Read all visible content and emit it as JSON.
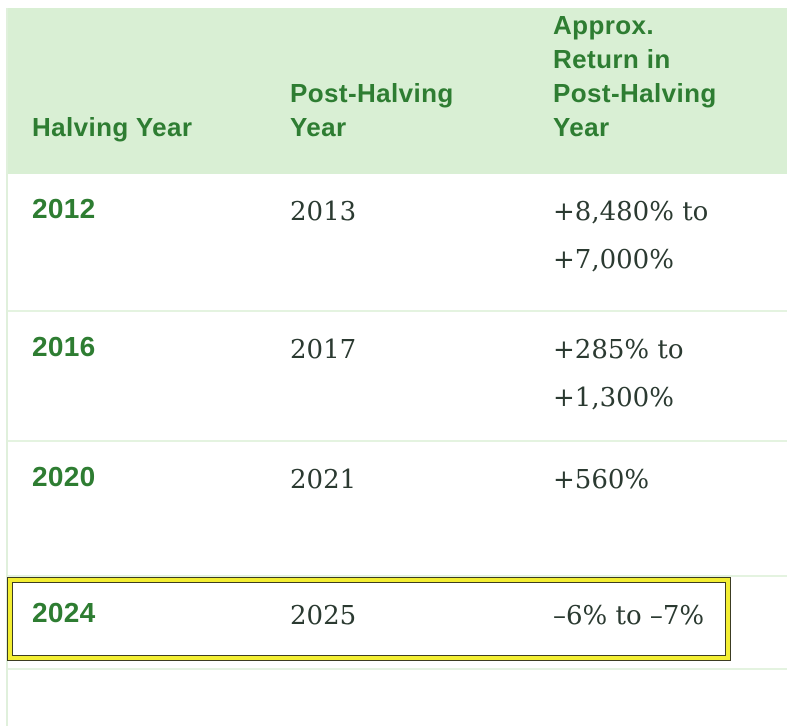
{
  "table": {
    "columns": [
      {
        "label": "Halving Year"
      },
      {
        "label": "Post-Halving Year"
      },
      {
        "label": "Approx. Return in Post-Halving Year"
      }
    ],
    "rows": [
      {
        "halving_year": "2012",
        "post_halving_year": "2013",
        "approx_return": "+8,480% to +7,000%",
        "highlighted": false
      },
      {
        "halving_year": "2016",
        "post_halving_year": "2017",
        "approx_return": "+285% to +1,300%",
        "highlighted": false
      },
      {
        "halving_year": "2020",
        "post_halving_year": "2021",
        "approx_return": "+560%",
        "highlighted": false
      },
      {
        "halving_year": "2024",
        "post_halving_year": "2025",
        "approx_return": "–6% to –7%",
        "highlighted": true
      }
    ]
  },
  "colors": {
    "header_background": "#d9efd4",
    "heading_text_green": "#2e7d32",
    "body_text": "#2b3a31",
    "row_divider": "#e4f3e0",
    "highlight_yellow": "#f3ee33",
    "highlight_outline": "#3c3c22"
  }
}
